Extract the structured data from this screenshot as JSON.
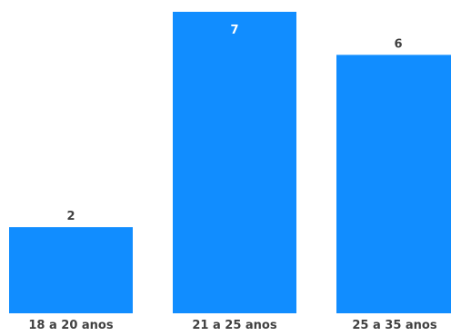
{
  "chart_data": {
    "type": "bar",
    "categories": [
      "18 a 20 anos",
      "21 a 25 anos",
      "25 a 35 anos"
    ],
    "values": [
      2,
      7,
      6
    ],
    "title": "",
    "xlabel": "",
    "ylabel": "",
    "ylim": [
      0,
      7
    ],
    "grid": false,
    "legend": "none",
    "colors": {
      "bar": "#118DFF",
      "label_outside": "#404040",
      "label_inside": "#ffffff",
      "category_label": "#404040"
    }
  }
}
